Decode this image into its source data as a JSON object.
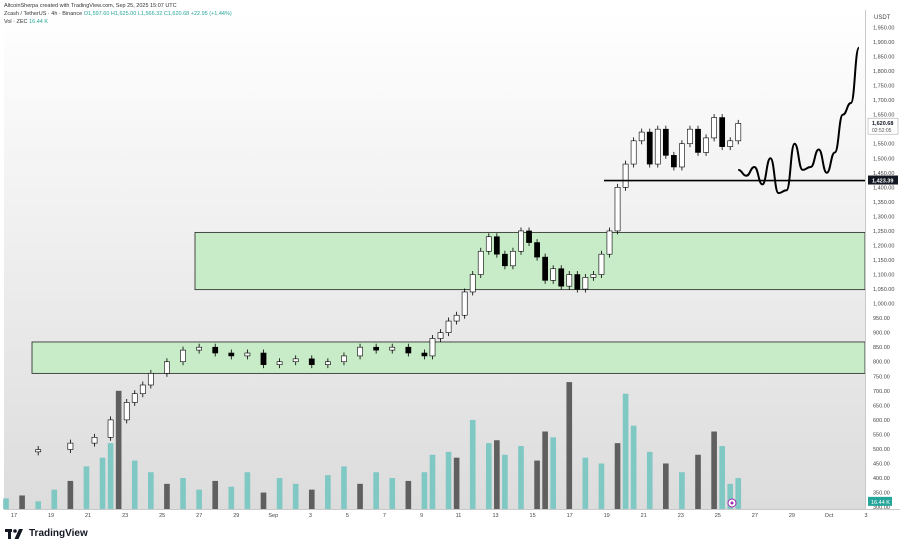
{
  "header": {
    "credit": "AltcoinSherpa created with TradingView.com, Sep 25, 2025 15:07 UTC",
    "symbol": "Zcash / TetherUS · 4h · Binance",
    "ohlc": "O1,597.60  H1,625.00  L1,566.32  C1,620.68  +22.95 (+1.44%)",
    "vol_label": "Vol · ZEC",
    "vol_value": "16.44 K"
  },
  "footer": {
    "brand": "TradingView"
  },
  "colors": {
    "up": "#ffffff",
    "down": "#000000",
    "zone_fill": "#c8ecc8",
    "vol_up": "#80c8c4",
    "vol_down": "#5f5f5f"
  },
  "chart_data": {
    "type": "candlestick",
    "y_unit": "USDT",
    "ylim": [
      290,
      2010
    ],
    "y_ticks": [
      300,
      350,
      400,
      450,
      500,
      550,
      600,
      650,
      700,
      750,
      800,
      850,
      900,
      950,
      1000,
      1050,
      1100,
      1150,
      1200,
      1250,
      1300,
      1350,
      1400,
      1450,
      1500,
      1550,
      1600,
      1650,
      1700,
      1750,
      1800,
      1850,
      1900,
      1950
    ],
    "x_ticks": [
      "17",
      "19",
      "21",
      "23",
      "25",
      "27",
      "29",
      "Sep",
      "3",
      "5",
      "7",
      "9",
      "11",
      "13",
      "15",
      "17",
      "19",
      "21",
      "23",
      "25",
      "27",
      "29",
      "Oct",
      "3"
    ],
    "price_labels": [
      {
        "value": 1620.68,
        "text": "1,620.68",
        "sub": "02:52:05"
      },
      {
        "value": 1423.39,
        "text": "1,423.39",
        "style": "dark"
      }
    ],
    "volume_label": "16.44 K",
    "zones": [
      {
        "from": 760,
        "to": 868
      },
      {
        "from": 1048,
        "to": 1245
      }
    ],
    "support_line": 1423.39,
    "price_path": [
      [
        0,
        490
      ],
      [
        4,
        498
      ],
      [
        8,
        520
      ],
      [
        11,
        540
      ],
      [
        13,
        600
      ],
      [
        15,
        660
      ],
      [
        16,
        690
      ],
      [
        17,
        720
      ],
      [
        18,
        760
      ],
      [
        20,
        800
      ],
      [
        22,
        840
      ],
      [
        24,
        850
      ],
      [
        26,
        830
      ],
      [
        28,
        820
      ],
      [
        30,
        830
      ],
      [
        32,
        790
      ],
      [
        34,
        800
      ],
      [
        36,
        810
      ],
      [
        38,
        790
      ],
      [
        40,
        800
      ],
      [
        42,
        820
      ],
      [
        44,
        850
      ],
      [
        46,
        840
      ],
      [
        48,
        850
      ],
      [
        50,
        830
      ],
      [
        52,
        820
      ],
      [
        53,
        880
      ],
      [
        54,
        900
      ],
      [
        55,
        940
      ],
      [
        56,
        960
      ],
      [
        57,
        1040
      ],
      [
        58,
        1100
      ],
      [
        59,
        1180
      ],
      [
        60,
        1230
      ],
      [
        61,
        1170
      ],
      [
        62,
        1130
      ],
      [
        63,
        1180
      ],
      [
        64,
        1250
      ],
      [
        65,
        1210
      ],
      [
        66,
        1160
      ],
      [
        67,
        1080
      ],
      [
        68,
        1120
      ],
      [
        69,
        1060
      ],
      [
        70,
        1100
      ],
      [
        71,
        1050
      ],
      [
        72,
        1090
      ],
      [
        73,
        1100
      ],
      [
        74,
        1170
      ],
      [
        75,
        1250
      ],
      [
        76,
        1400
      ],
      [
        77,
        1480
      ],
      [
        78,
        1560
      ],
      [
        79,
        1590
      ],
      [
        80,
        1480
      ],
      [
        81,
        1600
      ],
      [
        82,
        1510
      ],
      [
        83,
        1470
      ],
      [
        84,
        1550
      ],
      [
        85,
        1600
      ],
      [
        86,
        1520
      ],
      [
        87,
        1570
      ],
      [
        88,
        1640
      ],
      [
        89,
        1540
      ],
      [
        90,
        1560
      ],
      [
        91,
        1620
      ]
    ],
    "projection_path": [
      [
        91,
        1460
      ],
      [
        92,
        1440
      ],
      [
        93,
        1470
      ],
      [
        94,
        1410
      ],
      [
        95,
        1500
      ],
      [
        96,
        1380
      ],
      [
        97,
        1390
      ],
      [
        98,
        1550
      ],
      [
        99,
        1460
      ],
      [
        100,
        1470
      ],
      [
        101,
        1530
      ],
      [
        102,
        1450
      ],
      [
        103,
        1520
      ],
      [
        104,
        1650
      ],
      [
        105,
        1690
      ],
      [
        106,
        1880
      ]
    ],
    "volume": [
      [
        0,
        330,
        "u"
      ],
      [
        2,
        340,
        "d"
      ],
      [
        4,
        320,
        "u"
      ],
      [
        6,
        360,
        "u"
      ],
      [
        8,
        390,
        "d"
      ],
      [
        10,
        440,
        "u"
      ],
      [
        12,
        470,
        "u"
      ],
      [
        13,
        520,
        "u"
      ],
      [
        14,
        700,
        "d"
      ],
      [
        16,
        460,
        "u"
      ],
      [
        18,
        420,
        "u"
      ],
      [
        20,
        380,
        "d"
      ],
      [
        22,
        400,
        "u"
      ],
      [
        24,
        360,
        "u"
      ],
      [
        26,
        390,
        "d"
      ],
      [
        28,
        370,
        "u"
      ],
      [
        30,
        420,
        "u"
      ],
      [
        32,
        350,
        "d"
      ],
      [
        34,
        400,
        "u"
      ],
      [
        36,
        380,
        "u"
      ],
      [
        38,
        360,
        "d"
      ],
      [
        40,
        410,
        "u"
      ],
      [
        42,
        440,
        "u"
      ],
      [
        44,
        380,
        "d"
      ],
      [
        46,
        420,
        "u"
      ],
      [
        48,
        400,
        "u"
      ],
      [
        50,
        390,
        "d"
      ],
      [
        52,
        420,
        "u"
      ],
      [
        53,
        480,
        "u"
      ],
      [
        55,
        490,
        "u"
      ],
      [
        56,
        470,
        "d"
      ],
      [
        58,
        600,
        "u"
      ],
      [
        60,
        520,
        "u"
      ],
      [
        61,
        530,
        "d"
      ],
      [
        62,
        480,
        "u"
      ],
      [
        64,
        510,
        "u"
      ],
      [
        66,
        460,
        "d"
      ],
      [
        67,
        560,
        "d"
      ],
      [
        68,
        540,
        "u"
      ],
      [
        70,
        730,
        "d"
      ],
      [
        72,
        470,
        "u"
      ],
      [
        74,
        450,
        "u"
      ],
      [
        76,
        520,
        "d"
      ],
      [
        77,
        690,
        "u"
      ],
      [
        78,
        580,
        "u"
      ],
      [
        80,
        490,
        "u"
      ],
      [
        82,
        450,
        "d"
      ],
      [
        84,
        420,
        "u"
      ],
      [
        86,
        480,
        "d"
      ],
      [
        88,
        560,
        "d"
      ],
      [
        89,
        510,
        "u"
      ],
      [
        90,
        380,
        "u"
      ],
      [
        91,
        400,
        "u"
      ]
    ]
  }
}
